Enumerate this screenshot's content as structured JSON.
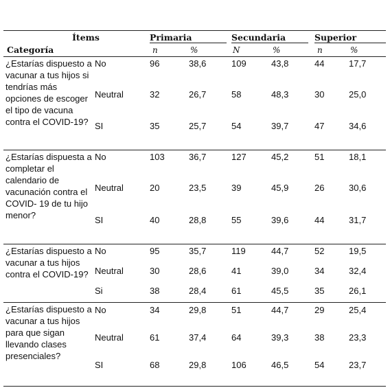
{
  "header": {
    "items": "Ítems",
    "category": "Categoría",
    "groups": [
      "Primaria",
      "Secundaria",
      "Superior"
    ],
    "subheaders": [
      "n",
      "%",
      "N",
      "%",
      "n",
      "%"
    ]
  },
  "table": {
    "sections": [
      {
        "question": "¿Estarías dispuesto a vacunar a tus hijos si tendrías más opciones de escoger el tipo de vacuna contra el COVID-19?",
        "rows": [
          [
            "No",
            "96",
            "38,6",
            "109",
            "43,8",
            "44",
            "17,7"
          ],
          [
            "Neutral",
            "32",
            "26,7",
            "58",
            "48,3",
            "30",
            "25,0"
          ],
          [
            "SI",
            "35",
            "25,7",
            "54",
            "39,7",
            "47",
            "34,6"
          ]
        ]
      },
      {
        "question": "¿Estarías dispuesta a completar el calendario de vacunación contra el COVID- 19 de tu hijo menor?",
        "rows": [
          [
            "No",
            "103",
            "36,7",
            "127",
            "45,2",
            "51",
            "18,1"
          ],
          [
            "Neutral",
            "20",
            "23,5",
            "39",
            "45,9",
            "26",
            "30,6"
          ],
          [
            "SI",
            "40",
            "28,8",
            "55",
            "39,6",
            "44",
            "31,7"
          ]
        ]
      },
      {
        "question": "¿Estarías dispuesto a vacunar a tus hijos contra el COVID-19?",
        "rows": [
          [
            "No",
            "95",
            "35,7",
            "119",
            "44,7",
            "52",
            "19,5"
          ],
          [
            "Neutral",
            "30",
            "28,6",
            "41",
            "39,0",
            "34",
            "32,4"
          ],
          [
            "Si",
            "38",
            "28,4",
            "61",
            "45,5",
            "35",
            "26,1"
          ]
        ]
      },
      {
        "question": "¿Estarías dispuesto a vacunar a tus hijos para que sigan llevando clases presenciales?",
        "rows": [
          [
            "No",
            "34",
            "29,8",
            "51",
            "44,7",
            "29",
            "25,4"
          ],
          [
            "Neutral",
            "61",
            "37,4",
            "64",
            "39,3",
            "38",
            "23,3"
          ],
          [
            "SI",
            "68",
            "29,8",
            "106",
            "46,5",
            "54",
            "23,7"
          ]
        ]
      }
    ]
  }
}
